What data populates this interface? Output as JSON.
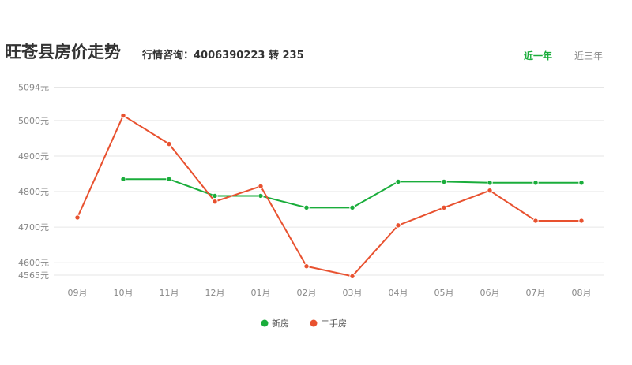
{
  "header": {
    "title": "旺苍县房价走势",
    "hotline": "行情咨询：4006390223 转 235",
    "tabs": [
      {
        "label": "近一年",
        "active": true
      },
      {
        "label": "近三年",
        "active": false
      }
    ]
  },
  "colors": {
    "accent": "#1aad3b",
    "new_house": "#1aad3b",
    "second_hand": "#e8512f",
    "grid": "#e6e6e6",
    "tick_text": "#888888"
  },
  "chart_data": {
    "type": "line",
    "title": "",
    "xlabel": "",
    "ylabel": "",
    "categories": [
      "09月",
      "10月",
      "11月",
      "12月",
      "01月",
      "02月",
      "03月",
      "04月",
      "05月",
      "06月",
      "07月",
      "08月"
    ],
    "yticks": [
      4565,
      4600,
      4700,
      4800,
      4900,
      5000,
      5094
    ],
    "ytick_labels": [
      "4565元",
      "4600元",
      "4700元",
      "4800元",
      "4900元",
      "5000元",
      "5094元"
    ],
    "ylim": [
      4565,
      5094
    ],
    "grid": true,
    "legend_position": "bottom-center",
    "series": [
      {
        "name": "新房",
        "color": "#1aad3b",
        "values": [
          null,
          4835,
          4835,
          4788,
          4788,
          4755,
          4755,
          4828,
          4828,
          4825,
          4825,
          4825
        ]
      },
      {
        "name": "二手房",
        "color": "#e8512f",
        "values": [
          4727,
          5014,
          4934,
          4772,
          4815,
          4590,
          4562,
          4705,
          4755,
          4803,
          4718,
          4718
        ]
      }
    ]
  }
}
